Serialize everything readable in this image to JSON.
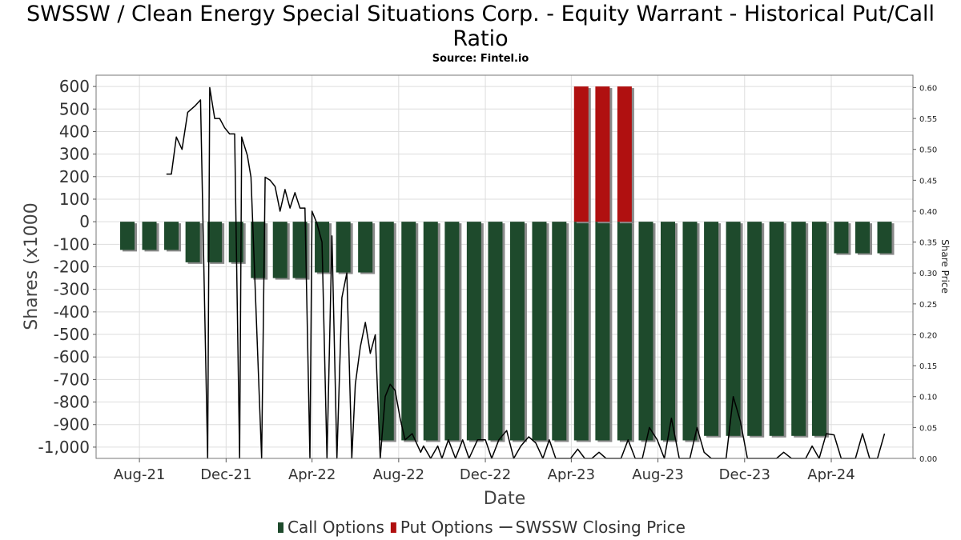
{
  "chart_data": {
    "type": "bar",
    "title": "SWSSW / Clean Energy Special Situations Corp. - Equity Warrant - Historical Put/Call Ratio",
    "subtitle": "Source: Fintel.io",
    "xlabel": "Date",
    "ylabel": "Shares (x1000",
    "y2label": "Share Price",
    "ylim": [
      -1050,
      650
    ],
    "y2lim": [
      0,
      0.62
    ],
    "xlim": [
      "2021-06-01",
      "2024-07-25"
    ],
    "x_ticks": [
      {
        "date": "2021-08-01",
        "label": "Aug-21"
      },
      {
        "date": "2021-12-01",
        "label": "Dec-21"
      },
      {
        "date": "2022-04-01",
        "label": "Apr-22"
      },
      {
        "date": "2022-08-01",
        "label": "Aug-22"
      },
      {
        "date": "2022-12-01",
        "label": "Dec-22"
      },
      {
        "date": "2023-04-01",
        "label": "Apr-23"
      },
      {
        "date": "2023-08-01",
        "label": "Aug-23"
      },
      {
        "date": "2023-12-01",
        "label": "Dec-23"
      },
      {
        "date": "2024-04-01",
        "label": "Apr-24"
      }
    ],
    "y_ticks": [
      {
        "value": 600,
        "label": "600"
      },
      {
        "value": 500,
        "label": "500"
      },
      {
        "value": 400,
        "label": "400"
      },
      {
        "value": 300,
        "label": "300"
      },
      {
        "value": 200,
        "label": "200"
      },
      {
        "value": 100,
        "label": "100"
      },
      {
        "value": 0,
        "label": "0"
      },
      {
        "value": -100,
        "label": "-100"
      },
      {
        "value": -200,
        "label": "-200"
      },
      {
        "value": -300,
        "label": "-300"
      },
      {
        "value": -400,
        "label": "-400"
      },
      {
        "value": -500,
        "label": "-500"
      },
      {
        "value": -600,
        "label": "-600"
      },
      {
        "value": -700,
        "label": "-700"
      },
      {
        "value": -800,
        "label": "-800"
      },
      {
        "value": -900,
        "label": "-900"
      },
      {
        "value": -1000,
        "label": "-1,000"
      }
    ],
    "y2_ticks": [
      {
        "value": 0.6,
        "label": "0.60"
      },
      {
        "value": 0.55,
        "label": "0.55"
      },
      {
        "value": 0.5,
        "label": "0.50"
      },
      {
        "value": 0.45,
        "label": "0.45"
      },
      {
        "value": 0.4,
        "label": "0.40"
      },
      {
        "value": 0.35,
        "label": "0.35"
      },
      {
        "value": 0.3,
        "label": "0.30"
      },
      {
        "value": 0.25,
        "label": "0.25"
      },
      {
        "value": 0.2,
        "label": "0.20"
      },
      {
        "value": 0.15,
        "label": "0.15"
      },
      {
        "value": 0.1,
        "label": "0.10"
      },
      {
        "value": 0.05,
        "label": "0.05"
      },
      {
        "value": 0.0,
        "label": "0.00"
      }
    ],
    "grid": true,
    "legend_position": "bottom",
    "colors": {
      "call": "#1e4a2c",
      "put": "#b01010",
      "price": "#000000",
      "bar_shadow": "#8a8a8a"
    },
    "series": [
      {
        "name": "Call Options",
        "type": "bar",
        "x": [
          "2021-07-15",
          "2021-08-15",
          "2021-09-15",
          "2021-10-15",
          "2021-11-15",
          "2021-12-15",
          "2022-01-15",
          "2022-02-15",
          "2022-03-15",
          "2022-04-15",
          "2022-05-15",
          "2022-06-15",
          "2022-07-15",
          "2022-08-15",
          "2022-09-15",
          "2022-10-15",
          "2022-11-15",
          "2022-12-15",
          "2023-01-15",
          "2023-02-15",
          "2023-03-15",
          "2023-04-15",
          "2023-05-15",
          "2023-06-15",
          "2023-07-15",
          "2023-08-15",
          "2023-09-15",
          "2023-10-15",
          "2023-11-15",
          "2023-12-15",
          "2024-01-15",
          "2024-02-15",
          "2024-03-15",
          "2024-04-15",
          "2024-05-15",
          "2024-06-15"
        ],
        "values": [
          -125,
          -125,
          -125,
          -180,
          -180,
          -180,
          -250,
          -250,
          -250,
          -225,
          -225,
          -225,
          -970,
          -970,
          -970,
          -970,
          -970,
          -970,
          -970,
          -970,
          -970,
          -970,
          -970,
          -970,
          -970,
          -970,
          -970,
          -950,
          -950,
          -950,
          -950,
          -950,
          -950,
          -140,
          -140,
          -140
        ]
      },
      {
        "name": "Put Options",
        "type": "bar",
        "x": [
          "2023-04-15",
          "2023-05-15",
          "2023-06-15"
        ],
        "values": [
          600,
          600,
          600
        ]
      },
      {
        "name": "SWSSW Closing Price",
        "type": "line",
        "x": [
          "2021-09-08",
          "2021-09-15",
          "2021-09-22",
          "2021-09-30",
          "2021-10-08",
          "2021-10-18",
          "2021-10-26",
          "2021-11-05",
          "2021-11-08",
          "2021-11-15",
          "2021-11-22",
          "2021-11-29",
          "2021-12-06",
          "2021-12-13",
          "2021-12-20",
          "2021-12-23",
          "2021-12-31",
          "2022-01-05",
          "2022-01-20",
          "2022-01-25",
          "2022-02-01",
          "2022-02-08",
          "2022-02-15",
          "2022-02-22",
          "2022-03-01",
          "2022-03-08",
          "2022-03-15",
          "2022-03-22",
          "2022-03-29",
          "2022-04-01",
          "2022-04-08",
          "2022-04-15",
          "2022-04-22",
          "2022-04-29",
          "2022-05-06",
          "2022-05-13",
          "2022-05-20",
          "2022-05-27",
          "2022-06-01",
          "2022-06-08",
          "2022-06-15",
          "2022-06-22",
          "2022-06-29",
          "2022-07-06",
          "2022-07-13",
          "2022-07-20",
          "2022-07-27",
          "2022-08-03",
          "2022-08-10",
          "2022-08-20",
          "2022-09-01",
          "2022-09-05",
          "2022-09-15",
          "2022-09-25",
          "2022-10-01",
          "2022-10-10",
          "2022-10-20",
          "2022-10-30",
          "2022-11-08",
          "2022-11-20",
          "2022-12-01",
          "2022-12-10",
          "2022-12-20",
          "2022-12-31",
          "2023-01-10",
          "2023-01-20",
          "2023-01-31",
          "2023-02-10",
          "2023-02-20",
          "2023-03-01",
          "2023-03-10",
          "2023-03-20",
          "2023-03-31",
          "2023-04-10",
          "2023-04-20",
          "2023-04-30",
          "2023-05-10",
          "2023-05-20",
          "2023-05-31",
          "2023-06-10",
          "2023-06-20",
          "2023-06-30",
          "2023-07-10",
          "2023-07-20",
          "2023-07-31",
          "2023-08-10",
          "2023-08-20",
          "2023-08-31",
          "2023-09-05",
          "2023-09-15",
          "2023-09-25",
          "2023-10-05",
          "2023-10-15",
          "2023-10-25",
          "2023-11-05",
          "2023-11-15",
          "2023-11-25",
          "2023-12-05",
          "2023-12-15",
          "2023-12-25",
          "2024-01-05",
          "2024-01-15",
          "2024-01-25",
          "2024-02-05",
          "2024-02-15",
          "2024-02-25",
          "2024-03-05",
          "2024-03-15",
          "2024-03-25",
          "2024-04-05",
          "2024-04-15",
          "2024-04-25",
          "2024-05-05",
          "2024-05-15",
          "2024-05-25",
          "2024-06-05",
          "2024-06-15"
        ],
        "values": [
          0.46,
          0.46,
          0.52,
          0.5,
          0.56,
          0.57,
          0.58,
          0.0,
          0.6,
          0.55,
          0.55,
          0.535,
          0.525,
          0.525,
          0.0,
          0.52,
          0.49,
          0.455,
          0.0,
          0.455,
          0.45,
          0.44,
          0.4,
          0.435,
          0.405,
          0.43,
          0.405,
          0.405,
          0.0,
          0.4,
          0.38,
          0.35,
          0.0,
          0.36,
          0.0,
          0.26,
          0.3,
          0.0,
          0.12,
          0.18,
          0.22,
          0.17,
          0.2,
          0.0,
          0.1,
          0.12,
          0.11,
          0.065,
          0.03,
          0.04,
          0.01,
          0.02,
          0.0,
          0.02,
          0.0,
          0.03,
          0.0,
          0.03,
          0.0,
          0.03,
          0.03,
          0.0,
          0.03,
          0.045,
          0.0,
          0.02,
          0.035,
          0.025,
          0.0,
          0.03,
          0.0,
          0.0,
          0.0,
          0.015,
          0.0,
          0.0,
          0.01,
          0.0,
          0.0,
          0.0,
          0.03,
          0.0,
          0.0,
          0.05,
          0.03,
          0.0,
          0.065,
          0.0,
          0.0,
          0.0,
          0.05,
          0.01,
          0.0,
          0.0,
          0.0,
          0.1,
          0.06,
          0.0,
          0.0,
          0.0,
          0.0,
          0.0,
          0.01,
          0.0,
          0.0,
          0.0,
          0.02,
          0.0,
          0.04,
          0.038,
          0.0,
          0.0,
          0.0,
          0.04,
          0.0,
          0.0,
          0.04
        ]
      }
    ]
  }
}
